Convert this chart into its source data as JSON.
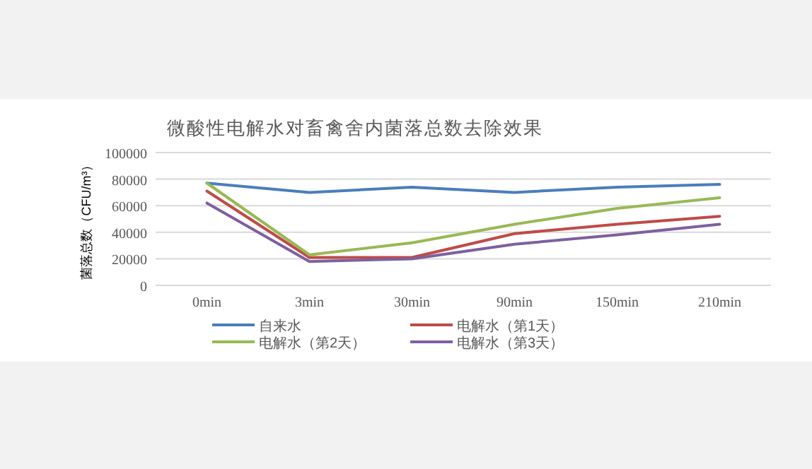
{
  "chart_data": {
    "type": "line",
    "title": "微酸性电解水对畜禽舍内菌落总数去除效果",
    "ylabel": "菌落总数（CFU/m³）",
    "categories": [
      "0min",
      "3min",
      "30min",
      "90min",
      "150min",
      "210min"
    ],
    "series": [
      {
        "name": "自来水",
        "color": "#4a7ebb",
        "values": [
          77000,
          70000,
          74000,
          70000,
          74000,
          76000
        ]
      },
      {
        "name": "电解水（第1天）",
        "color": "#be4b48",
        "values": [
          71000,
          21000,
          21000,
          39000,
          46000,
          52000
        ]
      },
      {
        "name": "电解水（第2天）",
        "color": "#98b954",
        "values": [
          77000,
          23000,
          32000,
          46000,
          58000,
          66000
        ]
      },
      {
        "name": "电解水（第3天）",
        "color": "#7d60a0",
        "values": [
          62000,
          18000,
          20000,
          31000,
          38000,
          46000
        ]
      }
    ],
    "ylim": [
      0,
      100000
    ],
    "yticks": [
      0,
      20000,
      40000,
      60000,
      80000,
      100000
    ],
    "grid": "y",
    "legend": "bottom",
    "marker": "none",
    "line_style": "solid"
  }
}
